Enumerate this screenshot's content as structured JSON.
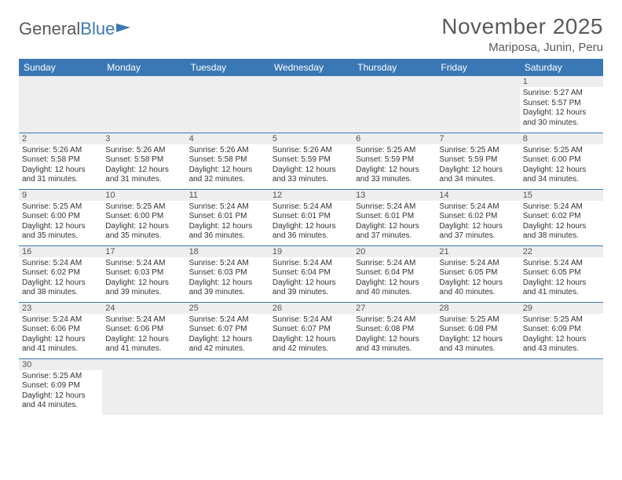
{
  "brand": {
    "part1": "General",
    "part2": "Blue"
  },
  "title": "November 2025",
  "location": "Mariposa, Junin, Peru",
  "colors": {
    "header_bg": "#3a78b5",
    "header_text": "#ffffff",
    "daynum_bg": "#eeeeee",
    "cell_border": "#3a78b5",
    "text": "#333333",
    "title_color": "#5a5a5a"
  },
  "day_labels": [
    "Sunday",
    "Monday",
    "Tuesday",
    "Wednesday",
    "Thursday",
    "Friday",
    "Saturday"
  ],
  "weeks": [
    [
      null,
      null,
      null,
      null,
      null,
      null,
      {
        "n": "1",
        "sunrise": "5:27 AM",
        "sunset": "5:57 PM",
        "daylight": "12 hours and 30 minutes."
      }
    ],
    [
      {
        "n": "2",
        "sunrise": "5:26 AM",
        "sunset": "5:58 PM",
        "daylight": "12 hours and 31 minutes."
      },
      {
        "n": "3",
        "sunrise": "5:26 AM",
        "sunset": "5:58 PM",
        "daylight": "12 hours and 31 minutes."
      },
      {
        "n": "4",
        "sunrise": "5:26 AM",
        "sunset": "5:58 PM",
        "daylight": "12 hours and 32 minutes."
      },
      {
        "n": "5",
        "sunrise": "5:26 AM",
        "sunset": "5:59 PM",
        "daylight": "12 hours and 33 minutes."
      },
      {
        "n": "6",
        "sunrise": "5:25 AM",
        "sunset": "5:59 PM",
        "daylight": "12 hours and 33 minutes."
      },
      {
        "n": "7",
        "sunrise": "5:25 AM",
        "sunset": "5:59 PM",
        "daylight": "12 hours and 34 minutes."
      },
      {
        "n": "8",
        "sunrise": "5:25 AM",
        "sunset": "6:00 PM",
        "daylight": "12 hours and 34 minutes."
      }
    ],
    [
      {
        "n": "9",
        "sunrise": "5:25 AM",
        "sunset": "6:00 PM",
        "daylight": "12 hours and 35 minutes."
      },
      {
        "n": "10",
        "sunrise": "5:25 AM",
        "sunset": "6:00 PM",
        "daylight": "12 hours and 35 minutes."
      },
      {
        "n": "11",
        "sunrise": "5:24 AM",
        "sunset": "6:01 PM",
        "daylight": "12 hours and 36 minutes."
      },
      {
        "n": "12",
        "sunrise": "5:24 AM",
        "sunset": "6:01 PM",
        "daylight": "12 hours and 36 minutes."
      },
      {
        "n": "13",
        "sunrise": "5:24 AM",
        "sunset": "6:01 PM",
        "daylight": "12 hours and 37 minutes."
      },
      {
        "n": "14",
        "sunrise": "5:24 AM",
        "sunset": "6:02 PM",
        "daylight": "12 hours and 37 minutes."
      },
      {
        "n": "15",
        "sunrise": "5:24 AM",
        "sunset": "6:02 PM",
        "daylight": "12 hours and 38 minutes."
      }
    ],
    [
      {
        "n": "16",
        "sunrise": "5:24 AM",
        "sunset": "6:02 PM",
        "daylight": "12 hours and 38 minutes."
      },
      {
        "n": "17",
        "sunrise": "5:24 AM",
        "sunset": "6:03 PM",
        "daylight": "12 hours and 39 minutes."
      },
      {
        "n": "18",
        "sunrise": "5:24 AM",
        "sunset": "6:03 PM",
        "daylight": "12 hours and 39 minutes."
      },
      {
        "n": "19",
        "sunrise": "5:24 AM",
        "sunset": "6:04 PM",
        "daylight": "12 hours and 39 minutes."
      },
      {
        "n": "20",
        "sunrise": "5:24 AM",
        "sunset": "6:04 PM",
        "daylight": "12 hours and 40 minutes."
      },
      {
        "n": "21",
        "sunrise": "5:24 AM",
        "sunset": "6:05 PM",
        "daylight": "12 hours and 40 minutes."
      },
      {
        "n": "22",
        "sunrise": "5:24 AM",
        "sunset": "6:05 PM",
        "daylight": "12 hours and 41 minutes."
      }
    ],
    [
      {
        "n": "23",
        "sunrise": "5:24 AM",
        "sunset": "6:06 PM",
        "daylight": "12 hours and 41 minutes."
      },
      {
        "n": "24",
        "sunrise": "5:24 AM",
        "sunset": "6:06 PM",
        "daylight": "12 hours and 41 minutes."
      },
      {
        "n": "25",
        "sunrise": "5:24 AM",
        "sunset": "6:07 PM",
        "daylight": "12 hours and 42 minutes."
      },
      {
        "n": "26",
        "sunrise": "5:24 AM",
        "sunset": "6:07 PM",
        "daylight": "12 hours and 42 minutes."
      },
      {
        "n": "27",
        "sunrise": "5:24 AM",
        "sunset": "6:08 PM",
        "daylight": "12 hours and 43 minutes."
      },
      {
        "n": "28",
        "sunrise": "5:25 AM",
        "sunset": "6:08 PM",
        "daylight": "12 hours and 43 minutes."
      },
      {
        "n": "29",
        "sunrise": "5:25 AM",
        "sunset": "6:09 PM",
        "daylight": "12 hours and 43 minutes."
      }
    ],
    [
      {
        "n": "30",
        "sunrise": "5:25 AM",
        "sunset": "6:09 PM",
        "daylight": "12 hours and 44 minutes."
      },
      null,
      null,
      null,
      null,
      null,
      null
    ]
  ],
  "labels": {
    "sunrise_prefix": "Sunrise: ",
    "sunset_prefix": "Sunset: ",
    "daylight_prefix": "Daylight: "
  }
}
